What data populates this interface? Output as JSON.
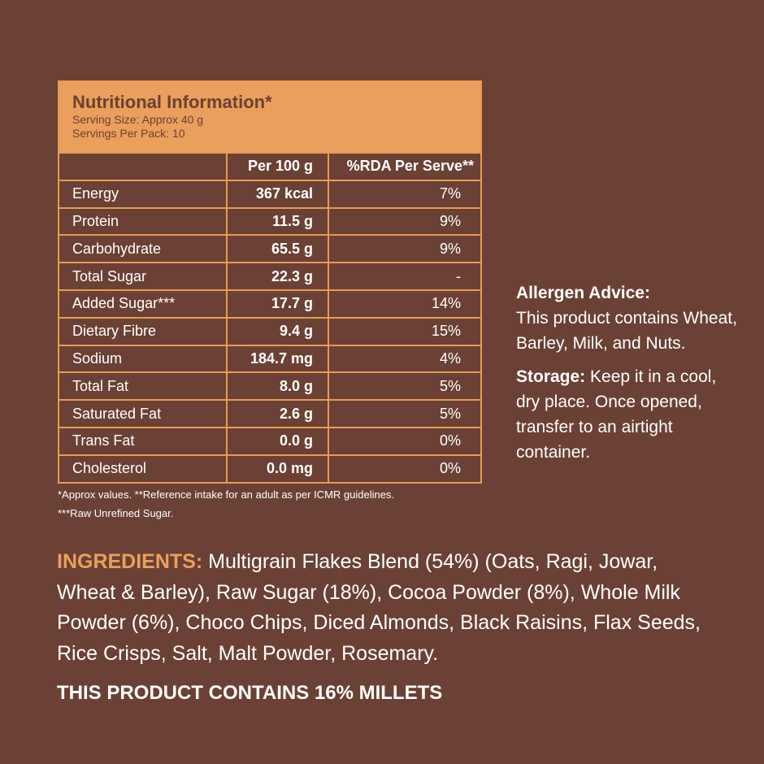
{
  "panel": {
    "title": "Nutritional Information*",
    "serving_size": "Serving Size: Approx 40 g",
    "servings_per_pack": "Servings Per Pack: 10",
    "col_per100": "Per 100 g",
    "col_rda": "%RDA Per Serve**",
    "rows": [
      {
        "name": "Energy",
        "per100": "367 kcal",
        "rda": "7%"
      },
      {
        "name": "Protein",
        "per100": "11.5 g",
        "rda": "9%"
      },
      {
        "name": "Carbohydrate",
        "per100": "65.5 g",
        "rda": "9%"
      },
      {
        "name": "Total Sugar",
        "per100": "22.3 g",
        "rda": "-"
      },
      {
        "name": "Added Sugar***",
        "per100": "17.7 g",
        "rda": "14%"
      },
      {
        "name": "Dietary Fibre",
        "per100": "9.4 g",
        "rda": "15%"
      },
      {
        "name": "Sodium",
        "per100": "184.7 mg",
        "rda": "4%"
      },
      {
        "name": "Total Fat",
        "per100": "8.0 g",
        "rda": "5%"
      },
      {
        "name": "Saturated Fat",
        "per100": "2.6 g",
        "rda": "5%"
      },
      {
        "name": "Trans Fat",
        "per100": "0.0 g",
        "rda": "0%"
      },
      {
        "name": "Cholesterol",
        "per100": "0.0 mg",
        "rda": "0%"
      }
    ],
    "footnote1": "*Approx values. **Reference intake for an adult as per ICMR guidelines.",
    "footnote2": "***Raw Unrefined Sugar."
  },
  "allergen": {
    "label": "Allergen Advice:",
    "text": "This product contains Wheat, Barley, Milk, and Nuts."
  },
  "storage": {
    "label": "Storage:",
    "text": " Keep it in a cool, dry place. Once opened, transfer to an airtight container."
  },
  "ingredients": {
    "label": "INGREDIENTS:",
    "text": " Multigrain Flakes Blend (54%) (Oats, Ragi, Jowar, Wheat & Barley), Raw Sugar (18%), Cocoa Powder (8%), Whole Milk Powder (6%), Choco Chips, Diced Almonds, Black Raisins, Flax Seeds, Rice Crisps, Salt, Malt Powder, Rosemary."
  },
  "millets": "THIS PRODUCT CONTAINS 16% MILLETS",
  "colors": {
    "background": "#6a4134",
    "accent": "#eb9f5c"
  }
}
